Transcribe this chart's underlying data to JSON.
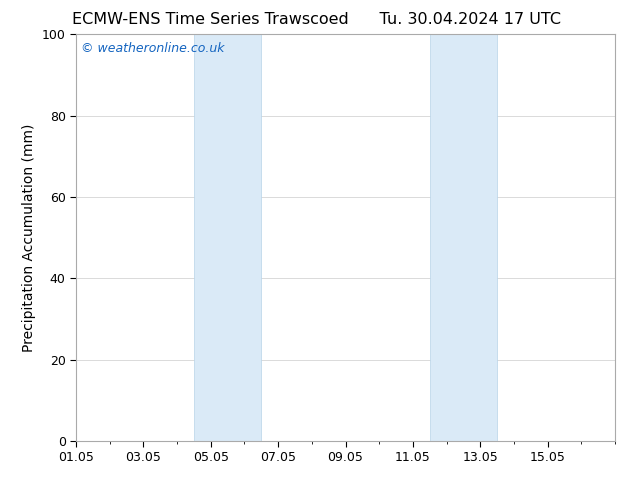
{
  "title_left": "ECMW-ENS Time Series Trawscoed",
  "title_right": "Tu. 30.04.2024 17 UTC",
  "ylabel": "Precipitation Accumulation (mm)",
  "xlim_start": 0,
  "xlim_end": 16,
  "ylim": [
    0,
    100
  ],
  "yticks": [
    0,
    20,
    40,
    60,
    80,
    100
  ],
  "xtick_labels": [
    "01.05",
    "03.05",
    "05.05",
    "07.05",
    "09.05",
    "11.05",
    "13.05",
    "15.05"
  ],
  "xtick_positions": [
    0,
    2,
    4,
    6,
    8,
    10,
    12,
    14
  ],
  "shaded_bands": [
    {
      "x_start": 3.5,
      "x_end": 5.5
    },
    {
      "x_start": 10.5,
      "x_end": 12.5
    }
  ],
  "band_color": "#daeaf7",
  "band_edge_color": "#b8d4e8",
  "background_color": "#ffffff",
  "plot_bg_color": "#ffffff",
  "watermark_text": "© weatheronline.co.uk",
  "watermark_color": "#1565C0",
  "title_fontsize": 11.5,
  "axis_label_fontsize": 10,
  "tick_fontsize": 9,
  "watermark_fontsize": 9,
  "border_color": "#aaaaaa",
  "grid_color": "#cccccc"
}
